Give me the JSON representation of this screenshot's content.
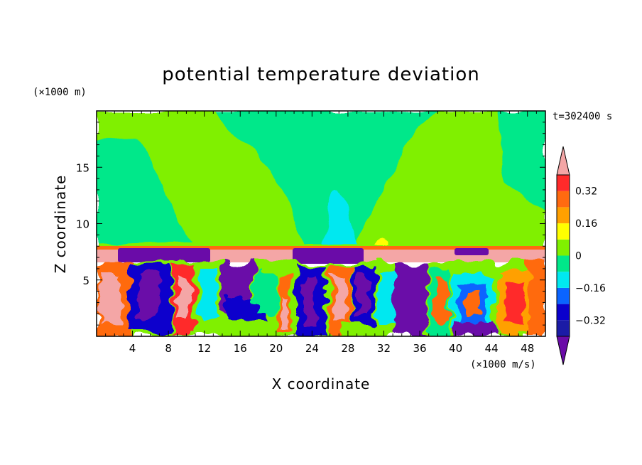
{
  "chart_data": {
    "type": "heatmap",
    "title": "potential temperature deviation",
    "xlabel": "X coordinate",
    "ylabel": "Z coordinate",
    "x_unit": "(×1000 m/s)",
    "y_unit": "(×1000 m)",
    "time_label": "t=302400 s",
    "xlim": [
      0,
      50
    ],
    "ylim": [
      0,
      20
    ],
    "x_ticks": [
      4,
      8,
      12,
      16,
      20,
      24,
      28,
      32,
      36,
      40,
      44,
      48
    ],
    "y_ticks": [
      5,
      10,
      15
    ],
    "colorbar": {
      "levels": [
        -0.4,
        -0.32,
        -0.24,
        -0.16,
        -0.08,
        0,
        0.08,
        0.16,
        0.24,
        0.32,
        0.4
      ],
      "labels": [
        "0.32",
        "0.16",
        "0",
        "−0.16",
        "−0.32"
      ],
      "label_values": [
        0.32,
        0.16,
        0,
        -0.16,
        -0.32
      ],
      "colors": [
        "#6a0ba8",
        "#1b1ba6",
        "#0a00cc",
        "#0a64ff",
        "#00e8f0",
        "#00e88a",
        "#80f000",
        "#ffff00",
        "#ffa000",
        "#ff6a10",
        "#ff2a2a",
        "#f4a6a6"
      ],
      "extend": "both"
    }
  }
}
